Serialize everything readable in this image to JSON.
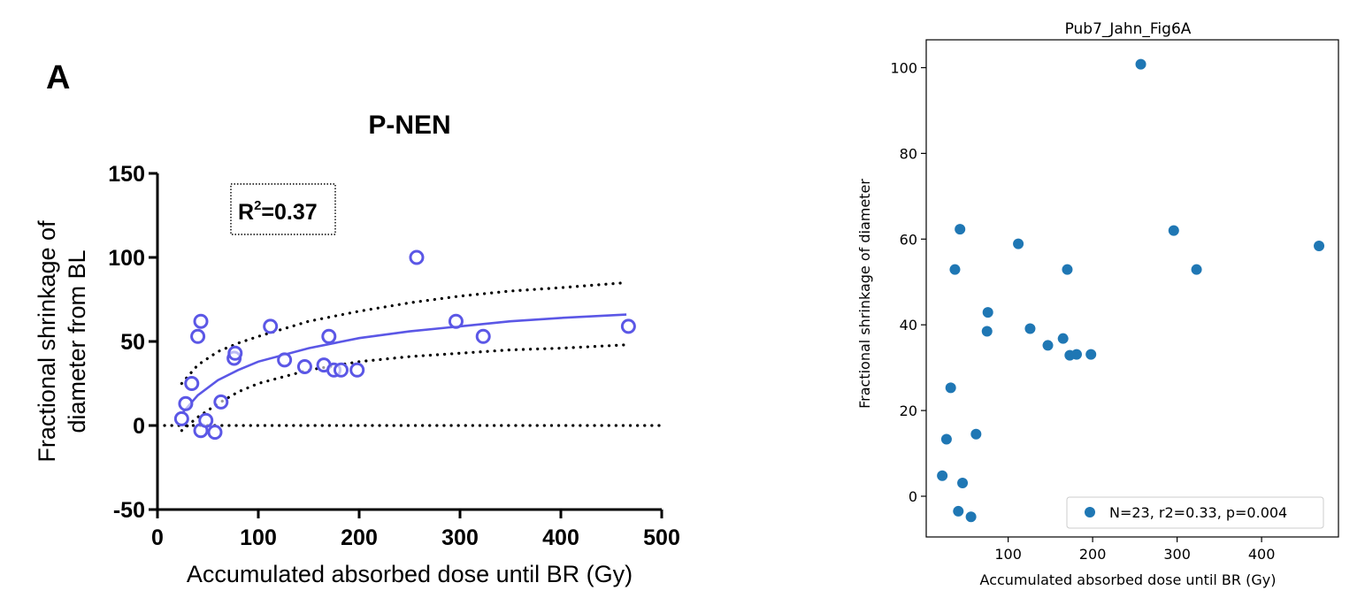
{
  "chart_data": [
    {
      "type": "scatter",
      "panel_label": "A",
      "title": "P-NEN",
      "xlabel": "Accumulated absorbed dose until BR (Gy)",
      "ylabel_lines": [
        "Fractional shrinkage of",
        "diameter from BL"
      ],
      "xlim": [
        0,
        500
      ],
      "ylim": [
        -50,
        150
      ],
      "xticks": [
        0,
        100,
        200,
        300,
        400,
        500
      ],
      "yticks": [
        -50,
        0,
        50,
        100,
        150
      ],
      "annotation": {
        "base": "R",
        "sup": "2",
        "rest": "=0.37"
      },
      "marker_color": "#5b57e6",
      "points": [
        {
          "x": 24,
          "y": 4
        },
        {
          "x": 28,
          "y": 13
        },
        {
          "x": 34,
          "y": 25
        },
        {
          "x": 40,
          "y": 53
        },
        {
          "x": 43,
          "y": 62
        },
        {
          "x": 43,
          "y": -3
        },
        {
          "x": 48,
          "y": 3
        },
        {
          "x": 57,
          "y": -4
        },
        {
          "x": 63,
          "y": 14
        },
        {
          "x": 76,
          "y": 40
        },
        {
          "x": 77,
          "y": 43
        },
        {
          "x": 112,
          "y": 59
        },
        {
          "x": 126,
          "y": 39
        },
        {
          "x": 146,
          "y": 35
        },
        {
          "x": 165,
          "y": 36
        },
        {
          "x": 170,
          "y": 53
        },
        {
          "x": 175,
          "y": 33
        },
        {
          "x": 182,
          "y": 33
        },
        {
          "x": 198,
          "y": 33
        },
        {
          "x": 257,
          "y": 100
        },
        {
          "x": 296,
          "y": 62
        },
        {
          "x": 323,
          "y": 53
        },
        {
          "x": 467,
          "y": 59
        }
      ],
      "fit_curve": {
        "x": [
          24,
          40,
          60,
          80,
          100,
          150,
          200,
          250,
          300,
          350,
          400,
          465
        ],
        "y": [
          7,
          18,
          27,
          33,
          38,
          46,
          52,
          56,
          59,
          62,
          64,
          66
        ]
      },
      "ci_upper": {
        "x": [
          24,
          40,
          60,
          80,
          100,
          150,
          200,
          250,
          300,
          350,
          400,
          465
        ],
        "y": [
          25,
          36,
          44,
          49,
          53,
          62,
          68,
          73,
          77,
          80,
          82,
          85
        ]
      },
      "ci_lower": {
        "x": [
          24,
          40,
          60,
          80,
          100,
          150,
          200,
          250,
          300,
          350,
          400,
          465
        ],
        "y": [
          -3,
          5,
          13,
          20,
          25,
          33,
          38,
          41,
          43,
          45,
          46,
          48
        ]
      },
      "baseline_y": 0
    },
    {
      "type": "scatter",
      "title": "Pub7_Jahn_Fig6A",
      "xlabel": "Accumulated absorbed dose until BR (Gy)",
      "ylabel": "Fractional shrinkage of diameter",
      "xlim": [
        3,
        491
      ],
      "ylim": [
        -9.5,
        106.5
      ],
      "xticks": [
        100,
        200,
        300,
        400
      ],
      "yticks": [
        0,
        20,
        40,
        60,
        80,
        100
      ],
      "marker_color": "#1f77b4",
      "legend": {
        "label": "N=23, r2=0.33, p=0.004",
        "placement": "lower-right"
      },
      "points": [
        {
          "x": 22,
          "y": 4.8
        },
        {
          "x": 27,
          "y": 13.3
        },
        {
          "x": 32,
          "y": 25.3
        },
        {
          "x": 37,
          "y": 52.9
        },
        {
          "x": 41,
          "y": -3.5
        },
        {
          "x": 43,
          "y": 62.3
        },
        {
          "x": 46,
          "y": 3.1
        },
        {
          "x": 56,
          "y": -4.8
        },
        {
          "x": 62,
          "y": 14.5
        },
        {
          "x": 75,
          "y": 38.5
        },
        {
          "x": 76,
          "y": 42.9
        },
        {
          "x": 112,
          "y": 58.9
        },
        {
          "x": 126,
          "y": 39.1
        },
        {
          "x": 147,
          "y": 35.2
        },
        {
          "x": 165,
          "y": 36.8
        },
        {
          "x": 170,
          "y": 52.9
        },
        {
          "x": 173,
          "y": 32.9
        },
        {
          "x": 181,
          "y": 33.1
        },
        {
          "x": 198,
          "y": 33.1
        },
        {
          "x": 257,
          "y": 100.8
        },
        {
          "x": 296,
          "y": 62.0
        },
        {
          "x": 323,
          "y": 52.9
        },
        {
          "x": 468,
          "y": 58.4
        }
      ]
    }
  ]
}
